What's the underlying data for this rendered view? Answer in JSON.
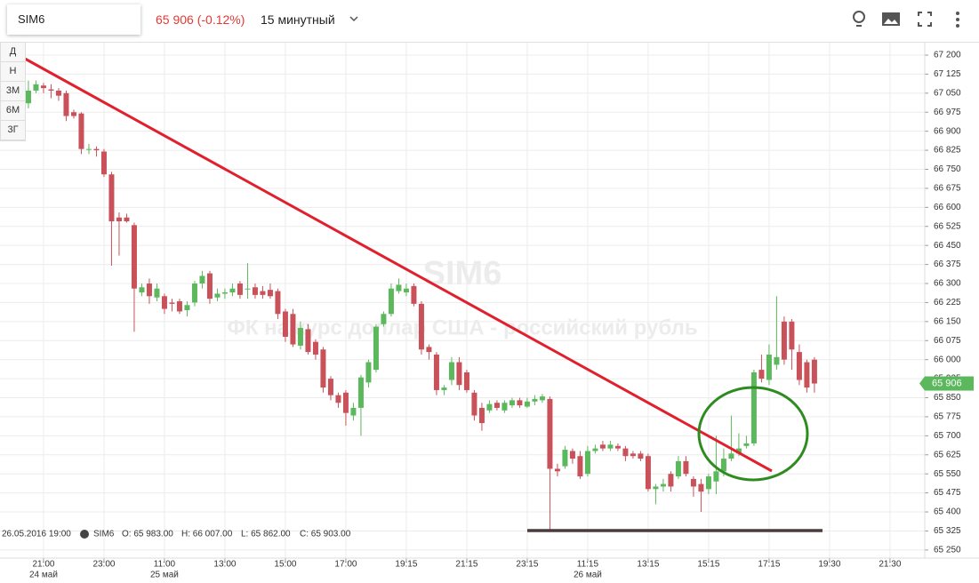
{
  "header": {
    "symbol": "SIM6",
    "price_change": "65 906 (-0.12%)",
    "interval": "15 минутный"
  },
  "range_buttons": [
    "Д",
    "Н",
    "3М",
    "6М",
    "3Г"
  ],
  "watermark": {
    "symbol": "SIM6",
    "description": "ФК на курс доллар США - российский рубль"
  },
  "legend": {
    "datetime": "26.05.2016 19:00",
    "symbol": "SIM6",
    "open": "O: 65 983.00",
    "high": "H: 66 007.00",
    "low": "L: 65 862.00",
    "close": "C: 65 903.00"
  },
  "chart_data": {
    "type": "candlestick",
    "up_color": "#5cb85c",
    "down_color": "#c9515a",
    "grid": true,
    "ylim": [
      65218,
      67252.5
    ],
    "xlim": [
      -3.76,
      118.6
    ],
    "yticks": [
      {
        "value": 67200,
        "label": "67 200"
      },
      {
        "value": 67125,
        "label": "67 125"
      },
      {
        "value": 67050,
        "label": "67 050"
      },
      {
        "value": 66975,
        "label": "66 975"
      },
      {
        "value": 66900,
        "label": "66 900"
      },
      {
        "value": 66825,
        "label": "66 825"
      },
      {
        "value": 66750,
        "label": "66 750"
      },
      {
        "value": 66675,
        "label": "66 675"
      },
      {
        "value": 66600,
        "label": "66 600"
      },
      {
        "value": 66525,
        "label": "66 525"
      },
      {
        "value": 66450,
        "label": "66 450"
      },
      {
        "value": 66375,
        "label": "66 375"
      },
      {
        "value": 66300,
        "label": "66 300"
      },
      {
        "value": 66225,
        "label": "66 225"
      },
      {
        "value": 66150,
        "label": "66 150"
      },
      {
        "value": 66075,
        "label": "66 075"
      },
      {
        "value": 66000,
        "label": "66 000"
      },
      {
        "value": 65925,
        "label": "65 925"
      },
      {
        "value": 65850,
        "label": "65 850"
      },
      {
        "value": 65775,
        "label": "65 775"
      },
      {
        "value": 65700,
        "label": "65 700"
      },
      {
        "value": 65625,
        "label": "65 625"
      },
      {
        "value": 65550,
        "label": "65 550"
      },
      {
        "value": 65475,
        "label": "65 475"
      },
      {
        "value": 65400,
        "label": "65 400"
      },
      {
        "value": 65325,
        "label": "65 325"
      },
      {
        "value": 65250,
        "label": "65 250"
      }
    ],
    "xticks": [
      {
        "value": 2,
        "label": "21:00"
      },
      {
        "value": 10,
        "label": "23:00"
      },
      {
        "value": 18,
        "label": "11:00"
      },
      {
        "value": 26,
        "label": "13:00"
      },
      {
        "value": 34,
        "label": "15:00"
      },
      {
        "value": 42,
        "label": "17:00"
      },
      {
        "value": 50,
        "label": "19:15"
      },
      {
        "value": 58,
        "label": "21:15"
      },
      {
        "value": 66,
        "label": "23:15"
      },
      {
        "value": 74,
        "label": "11:15"
      },
      {
        "value": 82,
        "label": "13:15"
      },
      {
        "value": 90,
        "label": "15:15"
      },
      {
        "value": 98,
        "label": "17:15"
      },
      {
        "value": 106,
        "label": "19:30"
      },
      {
        "value": 114,
        "label": "21:30"
      }
    ],
    "date_labels": [
      {
        "value": 2,
        "label": "24 май"
      },
      {
        "value": 18,
        "label": "25 май"
      },
      {
        "value": 74,
        "label": "26 май"
      }
    ],
    "last_price": {
      "value": 65906,
      "label": "65 906"
    },
    "x": [
      0,
      1,
      2,
      3,
      4,
      5,
      6,
      7,
      8,
      9,
      10,
      11,
      12,
      13,
      14,
      15,
      16,
      17,
      18,
      19,
      20,
      21,
      22,
      23,
      24,
      25,
      26,
      27,
      28,
      29,
      30,
      31,
      32,
      33,
      34,
      35,
      36,
      37,
      38,
      39,
      40,
      41,
      42,
      43,
      44,
      45,
      46,
      47,
      48,
      49,
      50,
      51,
      52,
      53,
      54,
      55,
      56,
      57,
      58,
      59,
      60,
      61,
      62,
      63,
      64,
      65,
      66,
      67,
      68,
      69,
      70,
      71,
      72,
      73,
      74,
      75,
      76,
      77,
      78,
      79,
      80,
      81,
      82,
      83,
      84,
      85,
      86,
      87,
      88,
      89,
      90,
      91,
      92,
      93,
      94,
      95,
      96,
      97,
      98,
      99,
      100,
      101,
      102,
      103,
      104
    ],
    "open": [
      67010,
      67060,
      67080,
      67065,
      67060,
      67050,
      66975,
      66970,
      66830,
      66830,
      66820,
      66730,
      66560,
      66560,
      66530,
      66265,
      66300,
      66245,
      66250,
      66225,
      66230,
      66195,
      66225,
      66300,
      66340,
      66245,
      66260,
      66265,
      66300,
      66280,
      66285,
      66270,
      66275,
      66270,
      66190,
      66180,
      66055,
      66120,
      66070,
      66040,
      65925,
      65860,
      65870,
      65780,
      65810,
      65910,
      65960,
      66140,
      66180,
      66270,
      66265,
      66290,
      66220,
      66050,
      66020,
      65880,
      65920,
      65990,
      65950,
      65870,
      65810,
      65800,
      65830,
      65800,
      65820,
      65840,
      65815,
      65835,
      65840,
      65845,
      65570,
      65580,
      65640,
      65620,
      65550,
      65640,
      65665,
      65650,
      65660,
      65650,
      65630,
      65630,
      65620,
      65490,
      65500,
      65550,
      65540,
      65600,
      65530,
      65510,
      65490,
      65520,
      65560,
      65610,
      65630,
      65660,
      65670,
      65960,
      65920,
      65980,
      66150,
      66150,
      66030,
      65990,
      66000
    ],
    "high": [
      67100,
      67100,
      67090,
      67085,
      67070,
      67060,
      66985,
      66975,
      66850,
      66840,
      66830,
      66740,
      66580,
      66575,
      66540,
      66300,
      66320,
      66300,
      66260,
      66240,
      66240,
      66230,
      66310,
      66350,
      66350,
      66280,
      66280,
      66300,
      66310,
      66380,
      66300,
      66290,
      66300,
      66280,
      66200,
      66200,
      66150,
      66140,
      66080,
      66050,
      65935,
      65870,
      65880,
      65830,
      65940,
      66000,
      66140,
      66190,
      66300,
      66320,
      66300,
      66300,
      66230,
      66060,
      66030,
      65900,
      66010,
      66010,
      65960,
      65880,
      65830,
      65840,
      65840,
      65840,
      65850,
      65850,
      65850,
      65860,
      65865,
      65855,
      65590,
      65660,
      65650,
      65640,
      65660,
      65665,
      65680,
      65680,
      65670,
      65660,
      65640,
      65640,
      65630,
      65510,
      65530,
      65560,
      65620,
      65620,
      65540,
      65530,
      65550,
      65700,
      65650,
      65780,
      65710,
      65700,
      65960,
      66020,
      66060,
      66250,
      66170,
      66160,
      66060,
      66000,
      66010
    ],
    "low": [
      66990,
      67050,
      67050,
      67030,
      67020,
      66940,
      66950,
      66810,
      66810,
      66800,
      66720,
      66370,
      66410,
      66540,
      66110,
      66250,
      66220,
      66230,
      66180,
      66190,
      66180,
      66170,
      66210,
      66280,
      66220,
      66230,
      66240,
      66250,
      66240,
      66240,
      66240,
      66240,
      66240,
      66160,
      66070,
      66050,
      66040,
      66020,
      66000,
      65870,
      65840,
      65810,
      65740,
      65760,
      65700,
      65890,
      65950,
      66130,
      66170,
      66260,
      66250,
      66210,
      66020,
      66000,
      65860,
      65860,
      65900,
      65880,
      65870,
      65760,
      65720,
      65790,
      65800,
      65790,
      65810,
      65810,
      65810,
      65820,
      65830,
      65330,
      65540,
      65570,
      65590,
      65530,
      65540,
      65630,
      65640,
      65640,
      65640,
      65600,
      65610,
      65600,
      65480,
      65430,
      65480,
      65480,
      65530,
      65540,
      65460,
      65400,
      65470,
      65470,
      65540,
      65600,
      65620,
      65650,
      65660,
      65910,
      65900,
      65960,
      65980,
      65960,
      65900,
      65870,
      65870
    ],
    "close": [
      67060,
      67085,
      67070,
      67060,
      67040,
      66960,
      66960,
      66830,
      66830,
      66825,
      66730,
      66545,
      66545,
      66545,
      66280,
      66285,
      66250,
      66280,
      66200,
      66220,
      66190,
      66215,
      66300,
      66330,
      66240,
      66260,
      66265,
      66280,
      66255,
      66280,
      66255,
      66255,
      66250,
      66180,
      66090,
      66060,
      66125,
      66030,
      66020,
      65890,
      65860,
      65830,
      65790,
      65810,
      65930,
      65990,
      66130,
      66180,
      66280,
      66295,
      66280,
      66220,
      66040,
      66030,
      65880,
      65890,
      65990,
      65900,
      65880,
      65780,
      65750,
      65825,
      65810,
      65830,
      65840,
      65820,
      65835,
      65845,
      65855,
      65570,
      65560,
      65645,
      65610,
      65540,
      65640,
      65650,
      65650,
      65665,
      65650,
      65620,
      65620,
      65610,
      65490,
      65500,
      65510,
      65500,
      65600,
      65550,
      65500,
      65480,
      65540,
      65560,
      65610,
      65630,
      65650,
      65670,
      65950,
      65925,
      66020,
      66010,
      66000,
      66040,
      65920,
      65890,
      65906
    ]
  }
}
